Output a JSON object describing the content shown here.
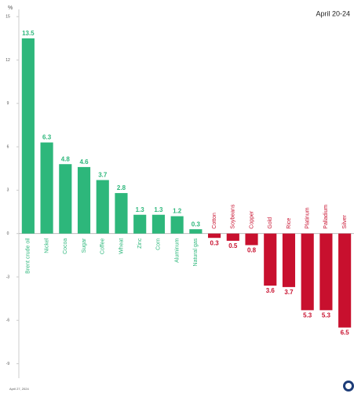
{
  "chart_data": {
    "type": "bar",
    "title": "April 20-24",
    "y_label": "%",
    "note": "April 27, 2024",
    "categories": [
      "Brent crude oil",
      "Nickel",
      "Cocoa",
      "Sugar",
      "Coffee",
      "Wheat",
      "Zinc",
      "Corn",
      "Aluminum",
      "Natural gas",
      "Cotton",
      "Soybeans",
      "Copper",
      "Gold",
      "Rice",
      "Platinum",
      "Palladium",
      "Silver"
    ],
    "values": [
      13.5,
      6.3,
      4.8,
      4.6,
      3.7,
      2.8,
      1.3,
      1.3,
      1.2,
      0.3,
      -0.3,
      -0.5,
      -0.8,
      -3.6,
      -3.7,
      -5.3,
      -5.3,
      -6.5
    ],
    "value_labels": [
      "13.5",
      "6.3",
      "4.8",
      "4.6",
      "3.7",
      "2.8",
      "1.3",
      "1.3",
      "1.2",
      "0.3",
      "0.3",
      "0.5",
      "0.8",
      "3.6",
      "3.7",
      "5.3",
      "5.3",
      "6.5"
    ],
    "positive_color": "#2db77b",
    "negative_color": "#c8102e",
    "ylim": [
      -10,
      15.5
    ],
    "yticks": [
      15,
      12,
      9,
      6,
      3,
      0,
      -3,
      -6,
      -9
    ]
  }
}
